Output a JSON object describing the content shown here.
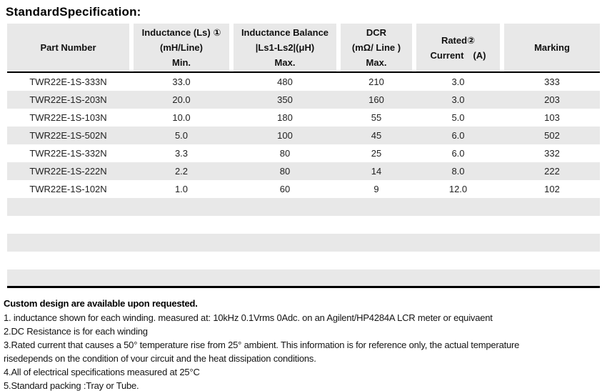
{
  "title": "StandardSpecification:",
  "colors": {
    "header_bg": "#e8e8e8",
    "alt_row_bg": "#e8e8e8",
    "table_border": "#000000",
    "text": "#1a1a1a"
  },
  "table": {
    "headers": [
      "Part Number",
      "Inductance (Ls) ①\n(mH/Line)\nMin.",
      "Inductance Balance\n|Ls1-Ls2|(μH)\nMax.",
      "DCR\n(mΩ/ Line )\nMax.",
      "Rated②\nCurrent　(A)",
      "Marking"
    ],
    "rows": [
      [
        "TWR22E-1S-333N",
        "33.0",
        "480",
        "210",
        "3.0",
        "333"
      ],
      [
        "TWR22E-1S-203N",
        "20.0",
        "350",
        "160",
        "3.0",
        "203"
      ],
      [
        "TWR22E-1S-103N",
        "10.0",
        "180",
        "55",
        "5.0",
        "103"
      ],
      [
        "TWR22E-1S-502N",
        "5.0",
        "100",
        "45",
        "6.0",
        "502"
      ],
      [
        "TWR22E-1S-332N",
        "3.3",
        "80",
        "25",
        "6.0",
        "332"
      ],
      [
        "TWR22E-1S-222N",
        "2.2",
        "80",
        "14",
        "8.0",
        "222"
      ],
      [
        "TWR22E-1S-102N",
        "1.0",
        "60",
        "9",
        "12.0",
        "102"
      ]
    ]
  },
  "notes": {
    "heading": "Custom design are available upon requested.",
    "lines": [
      "1. inductance shown for each winding. measured at: 10kHz 0.1Vrms 0Adc. on an Agilent/HP4284A LCR meter or equivaent",
      "2.DC Resistance is for each winding",
      "3.Rated current that causes a 50° temperature rise from 25° ambient. This information is for reference only, the actual temperature",
      "risedepends on the condition of vour circuit and the heat dissipation conditions.",
      "4.All of electrical specifications measured at 25°C",
      "5.Standard packing :Tray or Tube."
    ]
  }
}
